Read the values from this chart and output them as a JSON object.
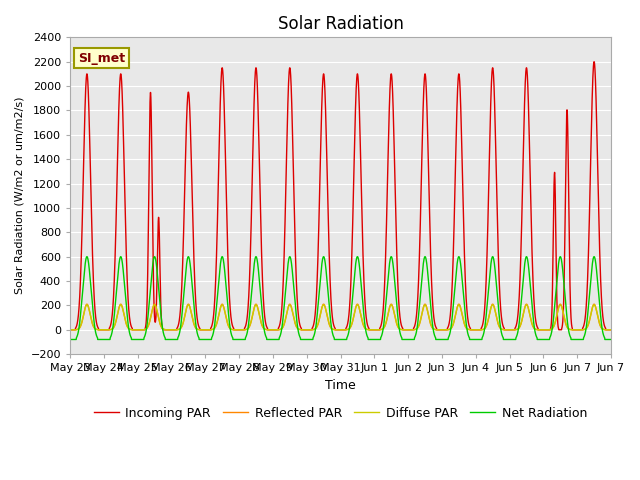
{
  "title": "Solar Radiation",
  "ylabel": "Solar Radiation (W/m2 or um/m2/s)",
  "xlabel": "Time",
  "ylim": [
    -200,
    2400
  ],
  "yticks": [
    -200,
    0,
    200,
    400,
    600,
    800,
    1000,
    1200,
    1400,
    1600,
    1800,
    2000,
    2200,
    2400
  ],
  "annotation_label": "SI_met",
  "annotation_bg": "#FFFFCC",
  "annotation_border": "#999900",
  "series_colors": [
    "#DD0000",
    "#FF8800",
    "#CCCC00",
    "#00CC00"
  ],
  "series_labels": [
    "Incoming PAR",
    "Reflected PAR",
    "Diffuse PAR",
    "Net Radiation"
  ],
  "series_linewidths": [
    1.0,
    1.0,
    1.0,
    1.0
  ],
  "fig_bg_color": "#FFFFFF",
  "plot_bg_color": "#E8E8E8",
  "grid_color": "#FFFFFF",
  "n_days": 16,
  "day_labels": [
    "May 23",
    "May 24",
    "May 25",
    "May 26",
    "May 27",
    "May 28",
    "May 29",
    "May 30",
    "May 31",
    "Jun 1",
    "Jun 2",
    "Jun 3",
    "Jun 4",
    "Jun 5",
    "Jun 6",
    "Jun 7"
  ],
  "legend_fontsize": 9,
  "title_fontsize": 12,
  "tick_fontsize": 8,
  "ylabel_fontsize": 8,
  "xlabel_fontsize": 9,
  "day_peaks_incoming": [
    2100,
    2100,
    2050,
    1950,
    2150,
    2150,
    2150,
    2100,
    2100,
    2100,
    2100,
    2100,
    2150,
    2150,
    1900,
    2200
  ]
}
